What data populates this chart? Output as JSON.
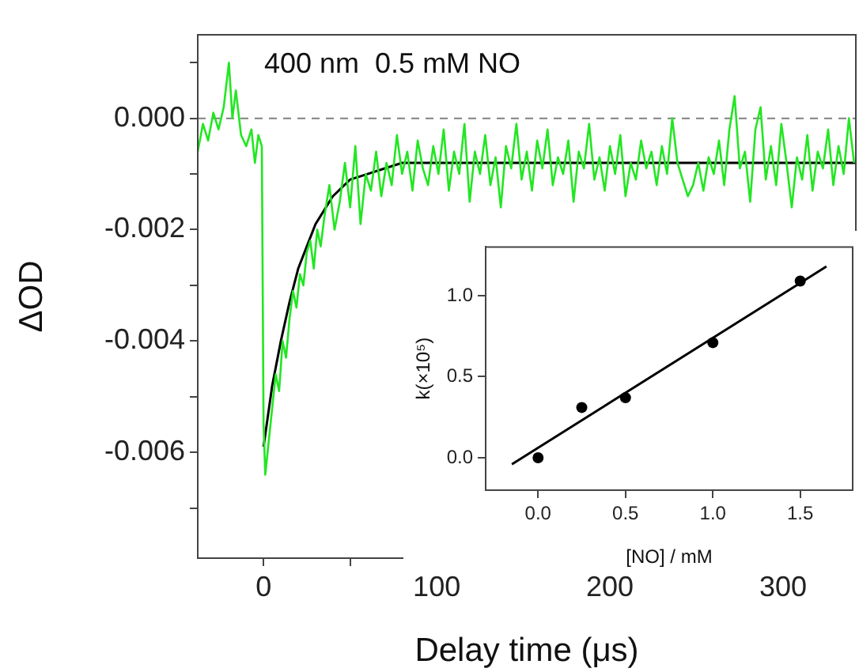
{
  "chart_data": [
    {
      "type": "line",
      "xlabel": "Delay time (μs)",
      "ylabel": "ΔOD",
      "annotations": [
        "400 nm  0.5 mM NO"
      ],
      "xlim": [
        -38,
        342
      ],
      "ylim": [
        -0.0079,
        0.0015
      ],
      "xticks": [
        0,
        {
          "value": 50,
          "label": null
        },
        100,
        {
          "value": 150,
          "label": null
        },
        200,
        {
          "value": 250,
          "label": null
        },
        300
      ],
      "yticks": [
        {
          "value": 0.001,
          "label": null
        },
        {
          "value": 0,
          "label": "0.000"
        },
        {
          "value": -0.001,
          "label": null
        },
        {
          "value": -0.002,
          "label": "-0.002"
        },
        {
          "value": -0.003,
          "label": null
        },
        {
          "value": -0.004,
          "label": "-0.004"
        },
        {
          "value": -0.005,
          "label": null
        },
        {
          "value": -0.006,
          "label": "-0.006"
        },
        {
          "value": -0.007,
          "label": null
        }
      ],
      "grid": false,
      "legend": false,
      "marker": "none",
      "line_style": "solid",
      "ref_lines": [
        {
          "axis": "y",
          "value": 0,
          "color": "#808080",
          "line_style": "dashed"
        }
      ],
      "series": [
        {
          "color": "#22e622",
          "x": [
            -38,
            -35,
            -32,
            -29,
            -26,
            -23,
            -20,
            -18,
            -16,
            -13,
            -10,
            -7,
            -5,
            -3,
            -1,
            0,
            1,
            3,
            5,
            7,
            9,
            11,
            13,
            15,
            17,
            19,
            21,
            23,
            25,
            27,
            29,
            31,
            33,
            35,
            38,
            41,
            44,
            47,
            50,
            53,
            56,
            59,
            62,
            65,
            68,
            71,
            74,
            77,
            80,
            83,
            86,
            89,
            92,
            95,
            98,
            101,
            104,
            107,
            110,
            113,
            116,
            119,
            122,
            125,
            128,
            131,
            134,
            137,
            140,
            143,
            146,
            149,
            152,
            155,
            158,
            161,
            164,
            167,
            170,
            173,
            176,
            179,
            182,
            185,
            188,
            191,
            194,
            197,
            200,
            203,
            206,
            209,
            212,
            215,
            218,
            221,
            224,
            227,
            230,
            233,
            236,
            239,
            242,
            245,
            248,
            251,
            254,
            257,
            260,
            263,
            266,
            269,
            272,
            275,
            278,
            281,
            284,
            287,
            290,
            293,
            296,
            299,
            302,
            305,
            308,
            311,
            314,
            317,
            320,
            323,
            326,
            329,
            332,
            335,
            338,
            341
          ],
          "values": [
            -0.0006,
            -0.0001,
            -0.0004,
            0.0001,
            -0.0002,
            0.0002,
            0.001,
            0.0,
            0.0005,
            -0.0003,
            -0.0005,
            -0.0002,
            -0.0008,
            -0.0003,
            -0.0005,
            -0.0055,
            -0.0064,
            -0.0058,
            -0.0052,
            -0.0046,
            -0.0049,
            -0.004,
            -0.0043,
            -0.0036,
            -0.0031,
            -0.0034,
            -0.0028,
            -0.003,
            -0.0024,
            -0.0022,
            -0.0027,
            -0.002,
            -0.0023,
            -0.0018,
            -0.0012,
            -0.002,
            -0.0015,
            -0.0008,
            -0.0016,
            -0.0005,
            -0.0019,
            -0.001,
            -0.0013,
            -0.0006,
            -0.0014,
            -0.0008,
            -0.0012,
            -0.0003,
            -0.001,
            -0.0006,
            -0.0013,
            -0.0004,
            -0.0009,
            -0.0012,
            -0.0005,
            -0.001,
            -0.0002,
            -0.0013,
            -0.0006,
            -0.001,
            -0.0001,
            -0.0015,
            -0.0006,
            -0.001,
            -0.0003,
            -0.0012,
            -0.0007,
            -0.0016,
            -0.0005,
            -0.0009,
            -0.0001,
            -0.0011,
            -0.0006,
            -0.0013,
            -0.0004,
            -0.0009,
            -0.0002,
            -0.0012,
            -0.0007,
            -0.001,
            -0.0004,
            -0.0015,
            -0.0006,
            -0.0009,
            -0.0001,
            -0.0011,
            -0.0007,
            -0.0013,
            -0.0005,
            -0.001,
            -0.0003,
            -0.0014,
            -0.0008,
            -0.0011,
            -0.0004,
            -0.0009,
            -0.0006,
            -0.0012,
            -0.0005,
            -0.001,
            0.0,
            -0.0008,
            -0.0011,
            -0.0014,
            -0.0012,
            -0.0008,
            -0.0013,
            -0.0007,
            -0.001,
            -0.0004,
            -0.0012,
            -0.0002,
            0.0004,
            -0.0009,
            -0.0006,
            -0.0015,
            -0.0002,
            0.0002,
            -0.0011,
            -0.0005,
            -0.0012,
            -0.0001,
            -0.0008,
            -0.0016,
            -0.0007,
            -0.0011,
            -0.0003,
            -0.0013,
            -0.0006,
            -0.0009,
            -0.0002,
            -0.0012,
            -0.0005,
            -0.001,
            0.0,
            -0.0008
          ]
        },
        {
          "color": "#000000",
          "x": [
            0,
            5,
            10,
            15,
            20,
            25,
            30,
            40,
            50,
            60,
            70,
            80,
            100,
            150,
            200,
            250,
            300,
            342
          ],
          "values": [
            -0.0059,
            -0.0048,
            -0.004,
            -0.0033,
            -0.0027,
            -0.0023,
            -0.0019,
            -0.0014,
            -0.0011,
            -0.001,
            -0.0009,
            -0.0008,
            -0.0008,
            -0.0008,
            -0.0008,
            -0.0008,
            -0.0008,
            -0.0008
          ]
        }
      ]
    },
    {
      "type": "scatter",
      "xlabel": "[NO] / mM",
      "ylabel": "k(×10⁵)",
      "xlim": [
        -0.3,
        1.8
      ],
      "ylim": [
        -0.2,
        1.3
      ],
      "xticks": [
        {
          "value": 0,
          "label": "0.0"
        },
        0.5,
        {
          "value": 1,
          "label": "1.0"
        },
        1.5
      ],
      "yticks": [
        {
          "value": 0,
          "label": "0.0"
        },
        0.5,
        {
          "value": 1,
          "label": "1.0"
        }
      ],
      "grid": false,
      "legend": false,
      "marker": "circle",
      "series": [
        {
          "color": "#000000",
          "x": [
            0,
            0.25,
            0.5,
            1.0,
            1.5
          ],
          "values": [
            0,
            0.31,
            0.37,
            0.71,
            1.09
          ]
        },
        {
          "type": "line",
          "color": "#000000",
          "marker": "none",
          "x": [
            -0.15,
            1.65
          ],
          "values": [
            -0.04,
            1.18
          ]
        }
      ]
    }
  ]
}
